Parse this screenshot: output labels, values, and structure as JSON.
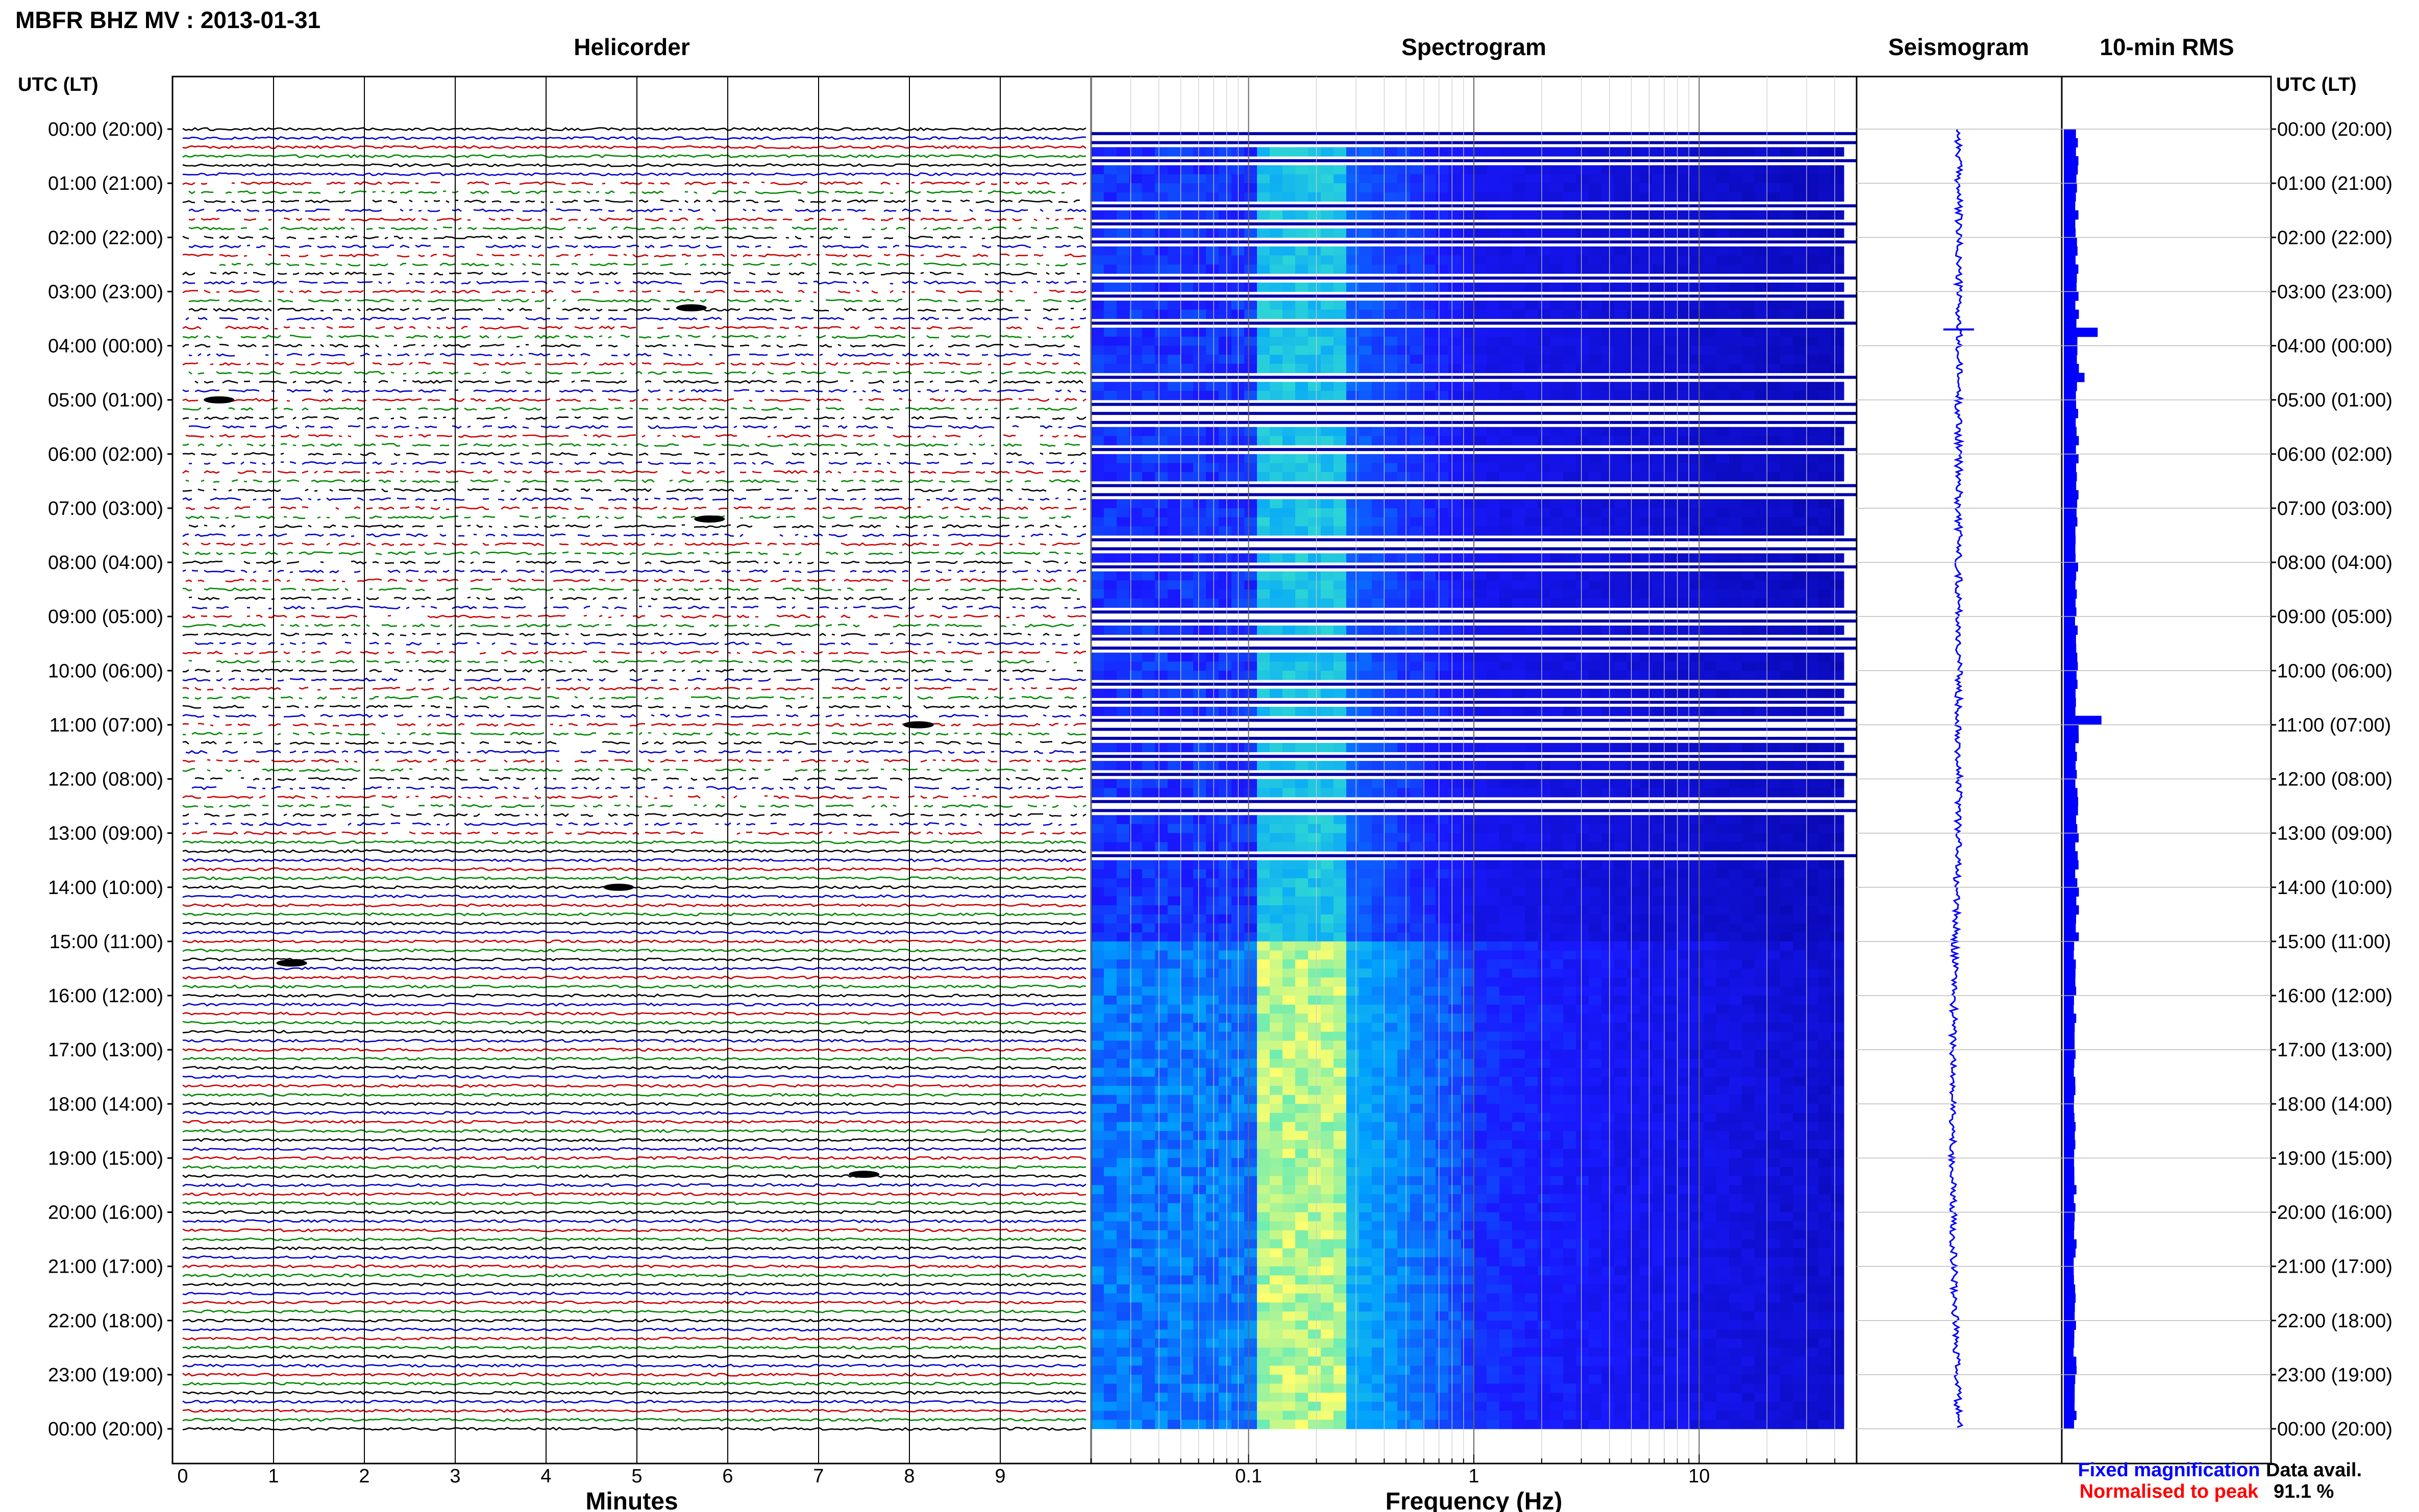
{
  "header": {
    "title": "MBFR BHZ MV : 2013-01-31",
    "utc_lt_label": "UTC (LT)"
  },
  "panels": {
    "helicorder": {
      "title": "Helicorder",
      "xlabel": "Minutes"
    },
    "spectrogram": {
      "title": "Spectrogram",
      "xlabel": "Frequency (Hz)"
    },
    "seismogram": {
      "title": "Seismogram"
    },
    "rms": {
      "title": "10-min RMS"
    }
  },
  "legend": {
    "fixed": "Fixed magnification",
    "normalised": "Normalised to peak",
    "fixed_color": "#0000ff",
    "normalised_color": "#ff0000"
  },
  "data_availability": {
    "label": "Data avail.",
    "value": "91.1 %"
  },
  "colors": {
    "trace_cycle": [
      "#000000",
      "#0000cc",
      "#cc0000",
      "#008800"
    ],
    "spectrogram_low": "#1a1aff",
    "spectrogram_high": "#ffff66",
    "seismogram": "#0000ff",
    "rms": "#0000ff"
  },
  "chart_data": [
    {
      "type": "line",
      "name": "helicorder",
      "x_ticks": [
        "0",
        "1",
        "2",
        "3",
        "4",
        "5",
        "6",
        "7",
        "8",
        "9"
      ],
      "xlim": [
        0,
        10
      ],
      "row_labels": [
        "00:00 (20:00)",
        "01:00 (21:00)",
        "02:00 (22:00)",
        "03:00 (23:00)",
        "04:00 (00:00)",
        "05:00 (01:00)",
        "06:00 (02:00)",
        "07:00 (03:00)",
        "08:00 (04:00)",
        "09:00 (05:00)",
        "10:00 (06:00)",
        "11:00 (07:00)",
        "12:00 (08:00)",
        "13:00 (09:00)",
        "14:00 (10:00)",
        "15:00 (11:00)",
        "16:00 (12:00)",
        "17:00 (13:00)",
        "18:00 (14:00)",
        "19:00 (15:00)",
        "20:00 (16:00)",
        "21:00 (17:00)",
        "22:00 (18:00)",
        "23:00 (19:00)",
        "00:00 (20:00)"
      ],
      "traces_per_hour": 6,
      "gappy_hours": [
        1,
        13
      ]
    },
    {
      "type": "heatmap",
      "name": "spectrogram",
      "x_scale": "log",
      "xlim": [
        0.02,
        50
      ],
      "x_ticks": [
        "0.1",
        "1",
        "10"
      ],
      "x_tick_values": [
        0.1,
        1,
        10
      ],
      "noisy_hours": [
        15,
        24
      ]
    },
    {
      "type": "line",
      "name": "seismogram",
      "duration_hours": 24
    },
    {
      "type": "bar",
      "name": "10-min RMS",
      "bins": 144,
      "ylim": [
        0,
        24
      ],
      "relative_level_quiet": 0.35,
      "relative_level_noisy": 0.3,
      "peaks": [
        {
          "hour": 3.7,
          "level": 0.9
        },
        {
          "hour": 10.8,
          "level": 1.0
        },
        {
          "hour": 4.5,
          "level": 0.55
        }
      ]
    }
  ]
}
